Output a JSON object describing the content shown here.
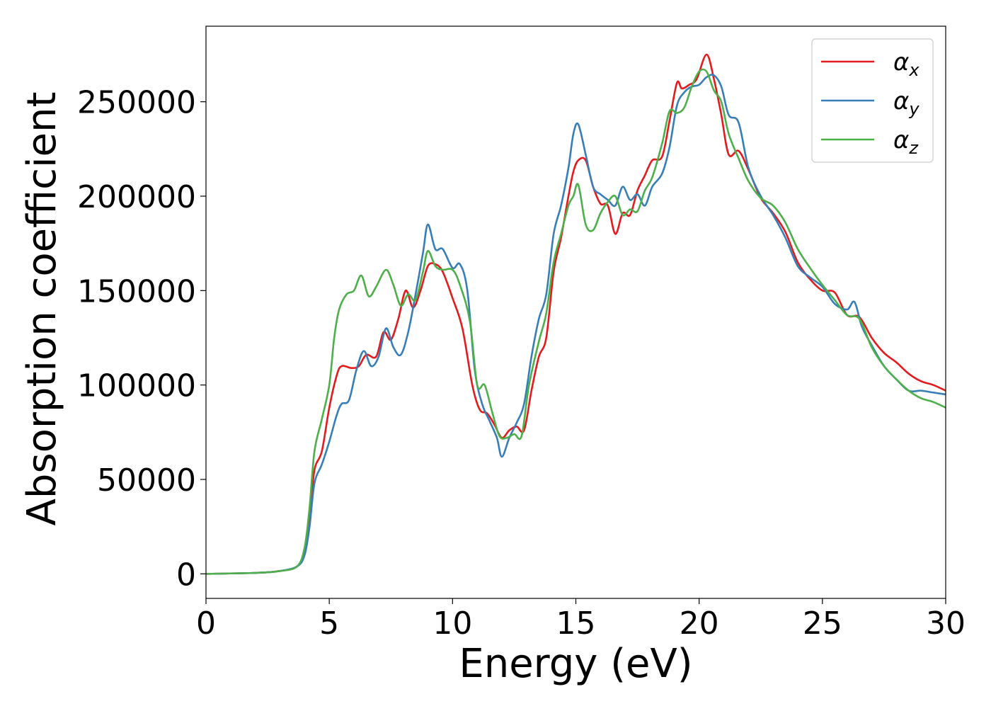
{
  "chart_data": {
    "type": "line",
    "title": "",
    "xlabel": "Energy (eV)",
    "ylabel": "Absorption coefficient",
    "xlim": [
      0,
      30
    ],
    "ylim": [
      -13000,
      290000
    ],
    "xticks": [
      0,
      5,
      10,
      15,
      20,
      25,
      30
    ],
    "yticks": [
      0,
      50000,
      100000,
      150000,
      200000,
      250000
    ],
    "grid": false,
    "legend_position": "top-right",
    "series": [
      {
        "name": "αx",
        "symbol": "α",
        "subscript": "x",
        "color": "#e41a1c",
        "points": [
          [
            0,
            0
          ],
          [
            2,
            500
          ],
          [
            3,
            1500
          ],
          [
            3.7,
            4000
          ],
          [
            4.0,
            12000
          ],
          [
            4.2,
            30000
          ],
          [
            4.4,
            55000
          ],
          [
            4.7,
            65000
          ],
          [
            5.0,
            88000
          ],
          [
            5.3,
            105000
          ],
          [
            5.5,
            110000
          ],
          [
            5.9,
            109000
          ],
          [
            6.2,
            110000
          ],
          [
            6.5,
            116000
          ],
          [
            6.9,
            115000
          ],
          [
            7.2,
            128000
          ],
          [
            7.5,
            124000
          ],
          [
            7.8,
            135000
          ],
          [
            8.1,
            150000
          ],
          [
            8.4,
            141000
          ],
          [
            8.7,
            150000
          ],
          [
            9.0,
            163000
          ],
          [
            9.3,
            164000
          ],
          [
            9.6,
            160000
          ],
          [
            10.0,
            146000
          ],
          [
            10.4,
            130000
          ],
          [
            10.8,
            100000
          ],
          [
            11.1,
            87000
          ],
          [
            11.4,
            85000
          ],
          [
            11.7,
            79000
          ],
          [
            12.0,
            72000
          ],
          [
            12.3,
            76000
          ],
          [
            12.6,
            78000
          ],
          [
            12.9,
            76000
          ],
          [
            13.2,
            97000
          ],
          [
            13.5,
            115000
          ],
          [
            13.8,
            125000
          ],
          [
            14.1,
            160000
          ],
          [
            14.4,
            178000
          ],
          [
            14.7,
            200000
          ],
          [
            14.9,
            213000
          ],
          [
            15.1,
            219000
          ],
          [
            15.4,
            219000
          ],
          [
            15.7,
            205000
          ],
          [
            16.0,
            196000
          ],
          [
            16.3,
            195000
          ],
          [
            16.6,
            180000
          ],
          [
            16.9,
            191000
          ],
          [
            17.2,
            190000
          ],
          [
            17.5,
            203000
          ],
          [
            17.8,
            211000
          ],
          [
            18.1,
            219000
          ],
          [
            18.5,
            221000
          ],
          [
            18.8,
            240000
          ],
          [
            19.1,
            260000
          ],
          [
            19.3,
            257000
          ],
          [
            19.6,
            259000
          ],
          [
            19.9,
            262000
          ],
          [
            20.3,
            275000
          ],
          [
            20.6,
            262000
          ],
          [
            20.9,
            243000
          ],
          [
            21.2,
            222000
          ],
          [
            21.6,
            224000
          ],
          [
            22.0,
            214000
          ],
          [
            22.5,
            199000
          ],
          [
            23.0,
            191000
          ],
          [
            23.5,
            181000
          ],
          [
            24.0,
            165000
          ],
          [
            24.5,
            156000
          ],
          [
            25.0,
            150000
          ],
          [
            25.5,
            149000
          ],
          [
            26.0,
            137000
          ],
          [
            26.5,
            136000
          ],
          [
            27.0,
            125000
          ],
          [
            27.5,
            117000
          ],
          [
            28.0,
            112000
          ],
          [
            28.5,
            106000
          ],
          [
            29.0,
            102000
          ],
          [
            29.5,
            100000
          ],
          [
            30.0,
            97000
          ]
        ]
      },
      {
        "name": "αy",
        "symbol": "α",
        "subscript": "y",
        "color": "#377eb8",
        "points": [
          [
            0,
            0
          ],
          [
            2,
            500
          ],
          [
            3,
            1500
          ],
          [
            3.7,
            4000
          ],
          [
            4.0,
            10000
          ],
          [
            4.2,
            25000
          ],
          [
            4.4,
            48000
          ],
          [
            4.7,
            58000
          ],
          [
            5.0,
            70000
          ],
          [
            5.3,
            84000
          ],
          [
            5.5,
            90000
          ],
          [
            5.8,
            92000
          ],
          [
            6.1,
            108000
          ],
          [
            6.4,
            118000
          ],
          [
            6.7,
            110000
          ],
          [
            7.0,
            115000
          ],
          [
            7.3,
            130000
          ],
          [
            7.6,
            120000
          ],
          [
            7.9,
            116000
          ],
          [
            8.2,
            128000
          ],
          [
            8.5,
            148000
          ],
          [
            8.8,
            170000
          ],
          [
            9.0,
            185000
          ],
          [
            9.3,
            172000
          ],
          [
            9.6,
            172000
          ],
          [
            10.0,
            162000
          ],
          [
            10.3,
            164000
          ],
          [
            10.6,
            150000
          ],
          [
            10.9,
            108000
          ],
          [
            11.2,
            90000
          ],
          [
            11.5,
            81000
          ],
          [
            11.8,
            72000
          ],
          [
            12.0,
            62000
          ],
          [
            12.3,
            72000
          ],
          [
            12.6,
            80000
          ],
          [
            12.9,
            90000
          ],
          [
            13.2,
            115000
          ],
          [
            13.5,
            135000
          ],
          [
            13.8,
            148000
          ],
          [
            14.1,
            180000
          ],
          [
            14.4,
            195000
          ],
          [
            14.7,
            215000
          ],
          [
            14.9,
            233000
          ],
          [
            15.1,
            238000
          ],
          [
            15.4,
            222000
          ],
          [
            15.7,
            205000
          ],
          [
            16.0,
            201000
          ],
          [
            16.3,
            198000
          ],
          [
            16.6,
            195000
          ],
          [
            16.9,
            205000
          ],
          [
            17.2,
            198000
          ],
          [
            17.5,
            201000
          ],
          [
            17.8,
            195000
          ],
          [
            18.1,
            205000
          ],
          [
            18.5,
            212000
          ],
          [
            18.8,
            226000
          ],
          [
            19.1,
            248000
          ],
          [
            19.4,
            255000
          ],
          [
            19.7,
            258000
          ],
          [
            20.0,
            259000
          ],
          [
            20.3,
            263000
          ],
          [
            20.6,
            264000
          ],
          [
            20.9,
            258000
          ],
          [
            21.2,
            243000
          ],
          [
            21.6,
            239000
          ],
          [
            22.0,
            215000
          ],
          [
            22.5,
            200000
          ],
          [
            23.0,
            190000
          ],
          [
            23.5,
            178000
          ],
          [
            24.0,
            163000
          ],
          [
            24.5,
            157000
          ],
          [
            25.0,
            152000
          ],
          [
            25.5,
            143000
          ],
          [
            26.0,
            140000
          ],
          [
            26.3,
            144000
          ],
          [
            26.6,
            131000
          ],
          [
            27.0,
            121000
          ],
          [
            27.5,
            110000
          ],
          [
            28.0,
            103000
          ],
          [
            28.5,
            97000
          ],
          [
            29.0,
            97000
          ],
          [
            29.5,
            96000
          ],
          [
            30.0,
            95000
          ]
        ]
      },
      {
        "name": "αz",
        "symbol": "α",
        "subscript": "z",
        "color": "#4daf4a",
        "points": [
          [
            0,
            0
          ],
          [
            2,
            500
          ],
          [
            3,
            1500
          ],
          [
            3.7,
            4000
          ],
          [
            4.0,
            14000
          ],
          [
            4.2,
            35000
          ],
          [
            4.4,
            65000
          ],
          [
            4.7,
            82000
          ],
          [
            5.0,
            100000
          ],
          [
            5.2,
            125000
          ],
          [
            5.4,
            140000
          ],
          [
            5.7,
            148000
          ],
          [
            6.0,
            150000
          ],
          [
            6.3,
            158000
          ],
          [
            6.6,
            147000
          ],
          [
            6.9,
            152000
          ],
          [
            7.3,
            161000
          ],
          [
            7.6,
            153000
          ],
          [
            7.9,
            142000
          ],
          [
            8.2,
            148000
          ],
          [
            8.5,
            145000
          ],
          [
            8.8,
            160000
          ],
          [
            9.0,
            171000
          ],
          [
            9.3,
            163000
          ],
          [
            9.6,
            161000
          ],
          [
            10.0,
            161000
          ],
          [
            10.3,
            153000
          ],
          [
            10.7,
            134000
          ],
          [
            11.0,
            100000
          ],
          [
            11.3,
            100000
          ],
          [
            11.6,
            86000
          ],
          [
            11.9,
            73000
          ],
          [
            12.2,
            72000
          ],
          [
            12.5,
            74000
          ],
          [
            12.8,
            73000
          ],
          [
            13.1,
            100000
          ],
          [
            13.5,
            123000
          ],
          [
            13.8,
            138000
          ],
          [
            14.1,
            165000
          ],
          [
            14.4,
            180000
          ],
          [
            14.7,
            195000
          ],
          [
            14.9,
            200000
          ],
          [
            15.1,
            206000
          ],
          [
            15.4,
            185000
          ],
          [
            15.7,
            182000
          ],
          [
            16.0,
            191000
          ],
          [
            16.3,
            197000
          ],
          [
            16.6,
            200000
          ],
          [
            16.9,
            190000
          ],
          [
            17.2,
            193000
          ],
          [
            17.5,
            192000
          ],
          [
            17.8,
            203000
          ],
          [
            18.1,
            210000
          ],
          [
            18.5,
            228000
          ],
          [
            18.8,
            245000
          ],
          [
            19.1,
            244000
          ],
          [
            19.4,
            247000
          ],
          [
            19.7,
            258000
          ],
          [
            20.0,
            266000
          ],
          [
            20.3,
            266000
          ],
          [
            20.6,
            256000
          ],
          [
            20.9,
            250000
          ],
          [
            21.2,
            233000
          ],
          [
            21.6,
            220000
          ],
          [
            22.0,
            208000
          ],
          [
            22.5,
            199000
          ],
          [
            23.0,
            195000
          ],
          [
            23.5,
            186000
          ],
          [
            24.0,
            172000
          ],
          [
            24.5,
            162000
          ],
          [
            25.0,
            153000
          ],
          [
            25.5,
            145000
          ],
          [
            26.0,
            137000
          ],
          [
            26.5,
            135000
          ],
          [
            27.0,
            120000
          ],
          [
            27.5,
            110000
          ],
          [
            28.0,
            103000
          ],
          [
            28.5,
            97000
          ],
          [
            29.0,
            93000
          ],
          [
            29.5,
            91000
          ],
          [
            30.0,
            88000
          ]
        ]
      }
    ]
  }
}
